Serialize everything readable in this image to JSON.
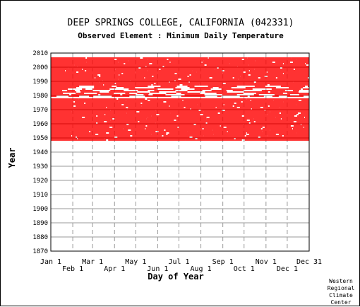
{
  "header": {
    "title": "DEEP SPRINGS COLLEGE, CALIFORNIA   (042331)",
    "subtitle": "Observed Element : Minimum Daily Temperature"
  },
  "credit": {
    "lines": [
      "Western",
      "Regional",
      "Climate",
      "Center"
    ]
  },
  "colors": {
    "data": "#ff0000",
    "grid": "#999999",
    "axis": "#000000"
  },
  "chart_data": {
    "type": "heatmap",
    "title": "DEEP SPRINGS COLLEGE, CALIFORNIA   (042331)",
    "subtitle": "Observed Element : Minimum Daily Temperature",
    "xlabel": "Day of Year",
    "ylabel": "Year",
    "xlim": [
      1,
      366
    ],
    "ylim": [
      1870,
      2010
    ],
    "x_ticks_top_row": [
      "Jan 1",
      "Mar 1",
      "May 1",
      "Jul 1",
      "Sep 1",
      "Nov 1",
      "Dec 31"
    ],
    "x_ticks_bottom_row": [
      "Feb 1",
      "Apr 1",
      "Jun 1",
      "Aug 1",
      "Oct 1",
      "Dec 1"
    ],
    "x_tick_days": [
      1,
      32,
      60,
      91,
      121,
      152,
      182,
      213,
      244,
      274,
      305,
      335,
      366
    ],
    "y_ticks": [
      1870,
      1880,
      1890,
      1900,
      1910,
      1920,
      1930,
      1940,
      1950,
      1960,
      1970,
      1980,
      1990,
      2000,
      2010
    ],
    "grid": true,
    "series": [
      {
        "name": "",
        "periods": [
          {
            "start_year": 1948,
            "end_year": 1977,
            "start_day": 1,
            "end_day": 366,
            "coverage": "mostly complete"
          },
          {
            "start_year": 1978,
            "end_year": 1986,
            "start_day": 1,
            "end_day": 366,
            "coverage": "sparse"
          },
          {
            "start_year": 1987,
            "end_year": 2006,
            "start_day": 1,
            "end_day": 366,
            "coverage": "mostly complete"
          }
        ]
      }
    ]
  }
}
